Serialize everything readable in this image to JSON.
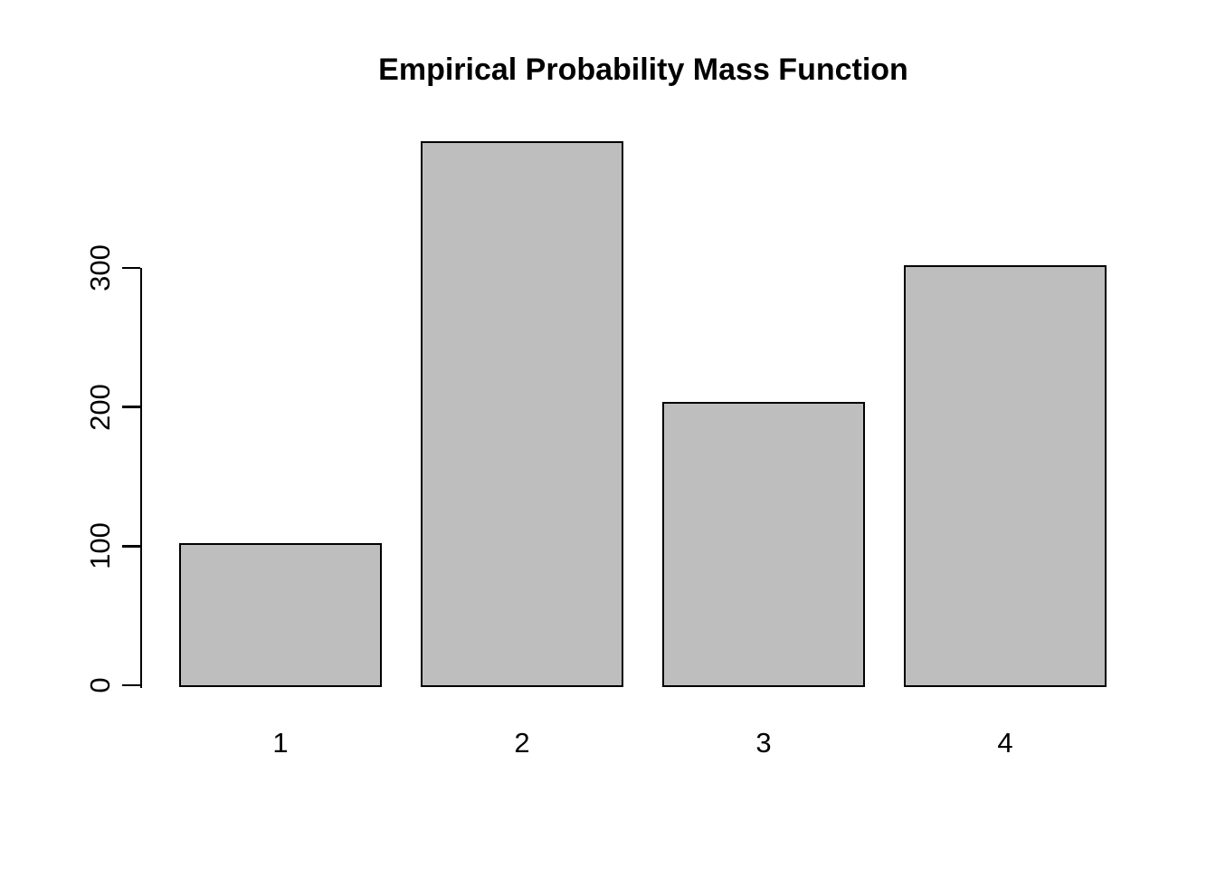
{
  "page": {
    "background": "#FFFFFF"
  },
  "chart_data": {
    "type": "bar",
    "title": "Empirical Probability Mass Function",
    "categories": [
      "1",
      "2",
      "3",
      "4"
    ],
    "values": [
      102,
      391,
      204,
      302
    ],
    "xlabel": "",
    "ylabel": "",
    "y_ticks": [
      0,
      100,
      200,
      300
    ],
    "ylim": [
      0,
      395
    ],
    "grid": false,
    "legend": false,
    "bar_fill": "#BEBEBE",
    "bar_border": "#000000",
    "axis_color": "#000000",
    "text_color": "#000000"
  }
}
